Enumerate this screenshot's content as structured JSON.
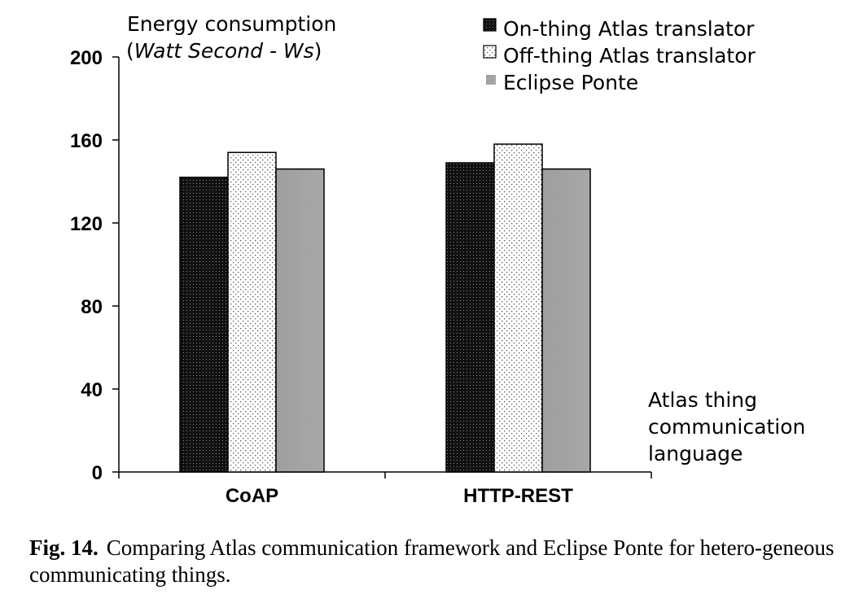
{
  "chart_data": {
    "type": "bar",
    "ylabel_line1": "Energy consumption",
    "ylabel_line2": "Watt Second - Ws",
    "xlabel_lines": [
      "Atlas thing",
      "communication",
      "language"
    ],
    "categories": [
      "CoAP",
      "HTTP-REST"
    ],
    "series": [
      {
        "name": "On-thing Atlas translator",
        "values": [
          142,
          149
        ],
        "pattern": "dark-dotted"
      },
      {
        "name": "Off-thing Atlas translator",
        "values": [
          154,
          158
        ],
        "pattern": "light-dotted"
      },
      {
        "name": "Eclipse Ponte",
        "values": [
          146,
          146
        ],
        "pattern": "gray-solid"
      }
    ],
    "ylim": [
      0,
      200
    ],
    "yticks": [
      0,
      40,
      80,
      120,
      160,
      200
    ],
    "grid": false,
    "legend_position": "top-right",
    "colors": {
      "dark": "#141414",
      "light": "#ffffff",
      "gray": "#a3a3a3"
    }
  },
  "caption": {
    "label": "Fig. 14.",
    "text": "Comparing Atlas communication framework and Eclipse Ponte for hetero-geneous communicating things."
  }
}
